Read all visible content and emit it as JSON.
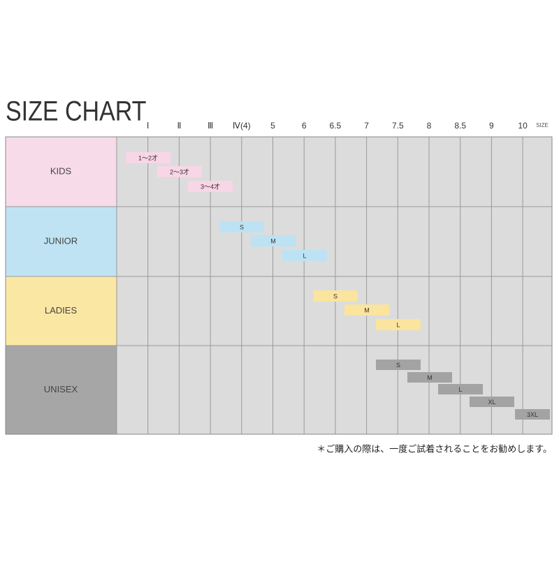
{
  "title": "SIZE CHART",
  "columns": [
    "Ⅰ",
    "Ⅱ",
    "Ⅲ",
    "Ⅳ(4)",
    "5",
    "6",
    "6.5",
    "7",
    "7.5",
    "8",
    "8.5",
    "9",
    "10"
  ],
  "size_label": "SIZE",
  "rows": [
    {
      "label": "KIDS",
      "sizes": [
        "1～2才",
        "2～3才",
        "3～4才"
      ]
    },
    {
      "label": "JUNIOR",
      "sizes": [
        "S",
        "M",
        "L"
      ]
    },
    {
      "label": "LADIES",
      "sizes": [
        "S",
        "M",
        "L"
      ]
    },
    {
      "label": "UNISEX",
      "sizes": [
        "S",
        "M",
        "L",
        "XL",
        "3XL"
      ]
    }
  ],
  "footnote": "＊ご購入の際は、一度ご試着されることをお勧めします。"
}
